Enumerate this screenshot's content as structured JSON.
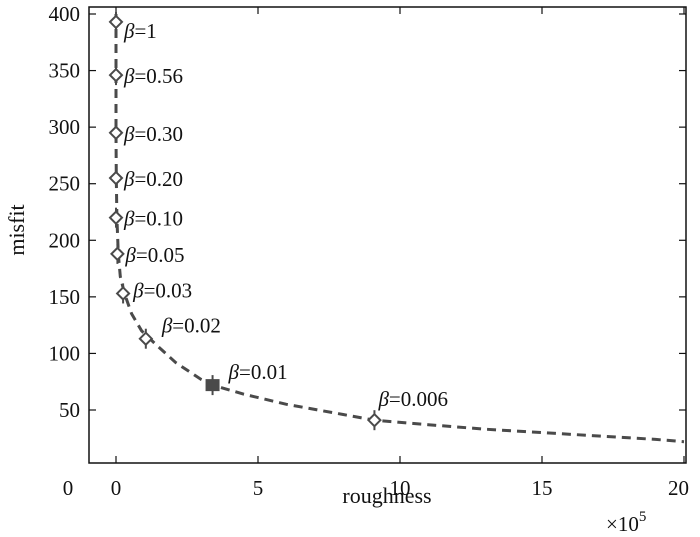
{
  "chart_data": {
    "type": "line",
    "title": "",
    "xlabel": "roughness",
    "ylabel": "misfit",
    "x_multiplier_label": "×10",
    "x_multiplier_exponent": "5",
    "xlim": [
      0,
      20
    ],
    "ylim": [
      8,
      400
    ],
    "grid": false,
    "x_ticks": [
      0,
      5,
      10,
      15,
      20
    ],
    "y_ticks": [
      50,
      100,
      150,
      200,
      250,
      300,
      350,
      400
    ],
    "x_tick_labels": [
      "0",
      "5",
      "10",
      "15",
      "20"
    ],
    "y_tick_labels": [
      "50",
      "100",
      "150",
      "200",
      "250",
      "300",
      "350",
      "400"
    ],
    "origin_label": "0",
    "curve": {
      "style": "dashed",
      "color": "#4a4a4a",
      "x": [
        0.0,
        0.0,
        0.0,
        0.01,
        0.03,
        0.08,
        0.15,
        0.3,
        0.55,
        0.9,
        1.4,
        2.1,
        3.0,
        3.4,
        4.5,
        6.0,
        8.0,
        9.1,
        11.0,
        13.0,
        15.0,
        17.0,
        19.0,
        20.0
      ],
      "y": [
        400,
        346,
        295,
        255,
        220,
        188,
        168,
        153,
        135,
        120,
        108,
        92,
        77,
        72,
        64,
        55,
        46,
        41,
        37,
        33,
        30,
        27,
        24,
        22
      ]
    },
    "markers": [
      {
        "label": "β=1",
        "x": 0.0,
        "y": 393,
        "filled": false
      },
      {
        "label": "β=0.56",
        "x": 0.0,
        "y": 346,
        "filled": false
      },
      {
        "label": "β=0.30",
        "x": 0.0,
        "y": 295,
        "filled": false
      },
      {
        "label": "β=0.20",
        "x": 0.0,
        "y": 255,
        "filled": false
      },
      {
        "label": "β=0.10",
        "x": 0.0,
        "y": 220,
        "filled": false
      },
      {
        "label": "β=0.05",
        "x": 0.05,
        "y": 188,
        "filled": false
      },
      {
        "label": "β=0.03",
        "x": 0.25,
        "y": 153,
        "filled": false
      },
      {
        "label": "β=0.02",
        "x": 1.05,
        "y": 113,
        "filled": false
      },
      {
        "label": "β=0.01",
        "x": 3.4,
        "y": 72,
        "filled": true
      },
      {
        "label": "β=0.006",
        "x": 9.1,
        "y": 41,
        "filled": false
      }
    ]
  }
}
